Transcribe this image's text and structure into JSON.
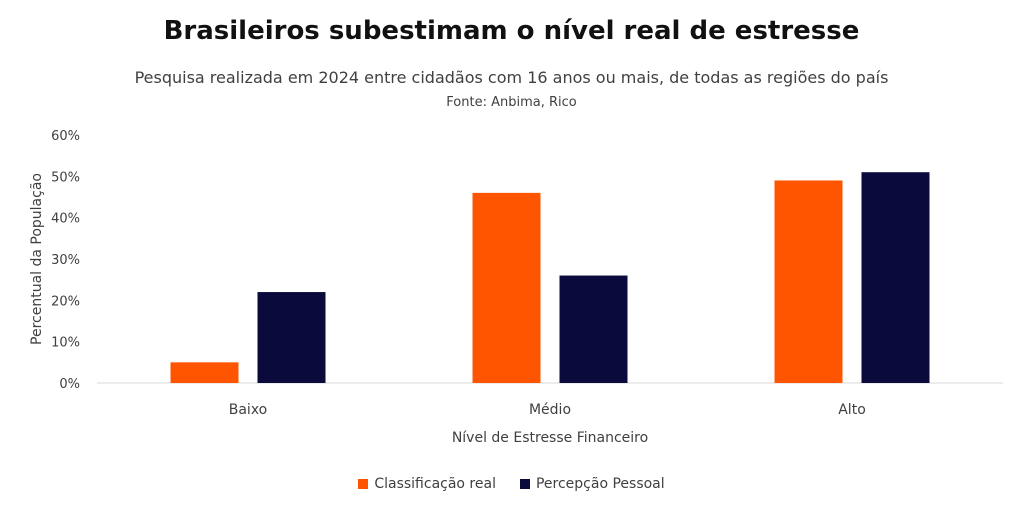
{
  "chart_data": {
    "type": "bar",
    "title": "Brasileiros subestimam o nível real de estresse",
    "subtitle": "Pesquisa realizada em 2024 entre cidadãos com 16 anos ou mais, de todas as regiões do país",
    "source": "Fonte: Anbima, Rico",
    "xlabel": "Nível de Estresse Financeiro",
    "ylabel": "Percentual da População",
    "categories": [
      "Baixo",
      "Médio",
      "Alto"
    ],
    "yticks": [
      "0%",
      "10%",
      "20%",
      "30%",
      "40%",
      "50%",
      "60%"
    ],
    "ylim": [
      0,
      60
    ],
    "grid": false,
    "legend_position": "bottom",
    "series": [
      {
        "name": "Classificação real",
        "color": "#FF5500",
        "values": [
          5,
          46,
          49
        ]
      },
      {
        "name": "Percepção Pessoal",
        "color": "#0A0A3C",
        "values": [
          22,
          26,
          51
        ]
      }
    ]
  }
}
